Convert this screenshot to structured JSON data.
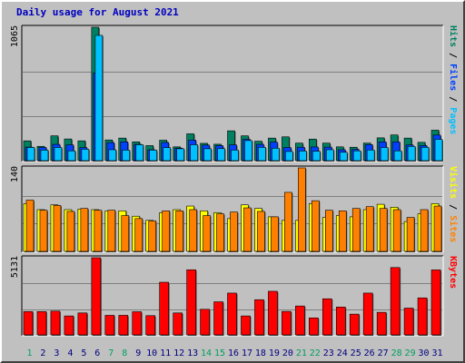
{
  "title": "Daily usage for August 2021",
  "colors": {
    "pages": "#00c0ff",
    "files": "#0040ff",
    "hits": "#008060",
    "visits": "#ffff00",
    "sites": "#ff8000",
    "kbytes": "#ff0000",
    "title": "#0000c0",
    "weekday_label": "#000080",
    "weekend_label": "#00a060"
  },
  "weekend_days": [
    1,
    7,
    8,
    14,
    15,
    21,
    22,
    28,
    29
  ],
  "chart_data": [
    {
      "type": "bar",
      "categories": [
        "1",
        "2",
        "3",
        "4",
        "5",
        "6",
        "7",
        "8",
        "9",
        "10",
        "11",
        "12",
        "13",
        "14",
        "15",
        "16",
        "17",
        "18",
        "19",
        "20",
        "21",
        "22",
        "23",
        "24",
        "25",
        "26",
        "27",
        "28",
        "29",
        "30",
        "31"
      ],
      "max_label": "1065",
      "ylim": [
        0,
        1065
      ],
      "legend": [
        "Pages",
        "Files",
        "Hits"
      ],
      "series": [
        {
          "name": "Hits",
          "values": [
            158,
            114,
            198,
            173,
            158,
            1065,
            165,
            180,
            150,
            120,
            163,
            110,
            214,
            138,
            131,
            238,
            198,
            155,
            180,
            190,
            140,
            172,
            140,
            110,
            107,
            140,
            182,
            205,
            180,
            146,
            243
          ]
        },
        {
          "name": "Files",
          "values": [
            108,
            105,
            130,
            126,
            104,
            700,
            144,
            150,
            130,
            87,
            145,
            100,
            164,
            124,
            120,
            126,
            170,
            130,
            148,
            105,
            107,
            109,
            108,
            87,
            90,
            128,
            150,
            150,
            125,
            120,
            204
          ]
        },
        {
          "name": "Pages",
          "values": [
            105,
            84,
            105,
            78,
            91,
            1000,
            87,
            84,
            127,
            84,
            104,
            95,
            127,
            95,
            96,
            84,
            160,
            106,
            99,
            73,
            77,
            75,
            87,
            67,
            78,
            85,
            105,
            78,
            114,
            106,
            170
          ]
        }
      ]
    },
    {
      "type": "bar",
      "categories": [
        "1",
        "2",
        "3",
        "4",
        "5",
        "6",
        "7",
        "8",
        "9",
        "10",
        "11",
        "12",
        "13",
        "14",
        "15",
        "16",
        "17",
        "18",
        "19",
        "20",
        "21",
        "22",
        "23",
        "24",
        "25",
        "26",
        "27",
        "28",
        "29",
        "30",
        "31"
      ],
      "max_label": "140",
      "ylim": [
        0,
        140
      ],
      "legend": [
        "Sites",
        "Visits"
      ],
      "series": [
        {
          "name": "Visits",
          "values": [
            80,
            70,
            78,
            70,
            71,
            70,
            68,
            68,
            59,
            52,
            65,
            70,
            76,
            68,
            65,
            55,
            78,
            72,
            58,
            52,
            52,
            80,
            57,
            60,
            58,
            70,
            79,
            74,
            50,
            63,
            80
          ]
        },
        {
          "name": "Sites",
          "values": [
            86,
            69,
            77,
            67,
            72,
            69,
            69,
            60,
            55,
            51,
            68,
            68,
            70,
            60,
            63,
            66,
            73,
            67,
            58,
            99,
            140,
            85,
            69,
            68,
            72,
            75,
            72,
            70,
            57,
            70,
            76
          ]
        }
      ]
    },
    {
      "type": "bar",
      "categories": [
        "1",
        "2",
        "3",
        "4",
        "5",
        "6",
        "7",
        "8",
        "9",
        "10",
        "11",
        "12",
        "13",
        "14",
        "15",
        "16",
        "17",
        "18",
        "19",
        "20",
        "21",
        "22",
        "23",
        "24",
        "25",
        "26",
        "27",
        "28",
        "29",
        "30",
        "31"
      ],
      "max_label": "5131",
      "ylim": [
        0,
        5131
      ],
      "legend": [
        "KBytes"
      ],
      "series": [
        {
          "name": "KBytes",
          "values": [
            1550,
            1550,
            1580,
            1260,
            1460,
            5131,
            1300,
            1300,
            1540,
            1280,
            3500,
            1460,
            4330,
            1700,
            2200,
            2780,
            1260,
            2340,
            2900,
            1560,
            1920,
            1130,
            2400,
            1850,
            1380,
            2780,
            1500,
            4480,
            1780,
            2460,
            4320
          ]
        }
      ]
    }
  ]
}
